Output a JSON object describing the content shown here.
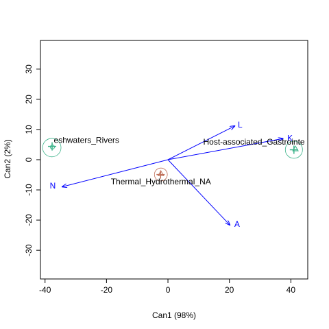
{
  "chart_data": {
    "type": "scatter",
    "xlabel": "Can1 (98%)",
    "ylabel": "Can2 (2%)",
    "xlim": [
      -41.5,
      45.5
    ],
    "ylim": [
      -39.5,
      39.5
    ],
    "x_ticks": [
      -40,
      -20,
      0,
      20,
      40
    ],
    "y_ticks": [
      -30,
      -20,
      -10,
      0,
      10,
      20,
      30
    ],
    "x_tick_labels": [
      "-40",
      "-20",
      "0",
      "20",
      "40"
    ],
    "y_tick_labels": [
      "-30",
      "-20",
      "-10",
      "0",
      "10",
      "20",
      "30"
    ],
    "grid": false,
    "colors": {
      "axis": "#000000",
      "arrow": "#0000ff",
      "freshwater": "#3cb38a",
      "thermal": "#c0705a",
      "host": "#3cb38a"
    },
    "groups": [
      {
        "label": "eshwaters_Rivers",
        "centroid": [
          -37.8,
          4.0
        ],
        "circle_radius": 3.0,
        "color_key": "freshwater",
        "points": [
          {
            "x": -37.6,
            "y": 4.2,
            "symbol": "o"
          },
          {
            "x": -37.7,
            "y": 4.4,
            "symbol": "+"
          }
        ],
        "label_pos": [
          -26.5,
          6.3
        ]
      },
      {
        "label": "Thermal_Hydrothermal_NA",
        "centroid": [
          -2.3,
          -4.9
        ],
        "circle_radius": 2.1,
        "color_key": "thermal",
        "points": [
          {
            "x": -2.3,
            "y": -4.6,
            "symbol": "^"
          },
          {
            "x": -2.4,
            "y": -4.9,
            "symbol": "+"
          }
        ],
        "label_pos": [
          -2.3,
          -7.5
        ]
      },
      {
        "label": "Host-associated_Gastrointe",
        "centroid": [
          41.0,
          3.3
        ],
        "circle_radius": 2.8,
        "color_key": "host",
        "points": [
          {
            "x": 41.5,
            "y": 3.6,
            "symbol": "^"
          },
          {
            "x": 41.0,
            "y": 3.3,
            "symbol": "+"
          }
        ],
        "label_pos": [
          28.0,
          5.7
        ]
      }
    ],
    "vectors": [
      {
        "label": "L",
        "x": 21.8,
        "y": 11.2,
        "label_x": 23.5,
        "label_y": 11.4
      },
      {
        "label": "K",
        "x": 37.5,
        "y": 7.0,
        "label_x": 39.7,
        "label_y": 7.0
      },
      {
        "label": "N",
        "x": -34.5,
        "y": -9.0,
        "label_x": -37.5,
        "label_y": -8.8
      },
      {
        "label": "A",
        "x": 20.2,
        "y": -21.7,
        "label_x": 22.5,
        "label_y": -21.5
      }
    ]
  }
}
